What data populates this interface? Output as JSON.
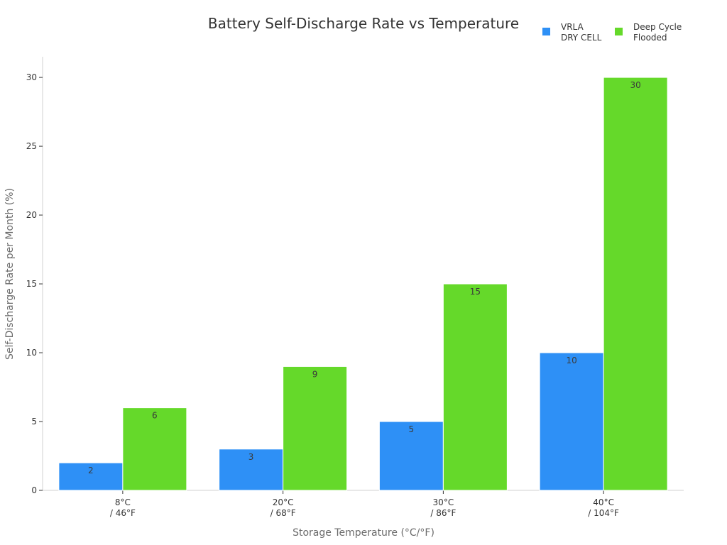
{
  "chart_data": {
    "type": "bar",
    "title": "Battery Self-Discharge Rate vs Temperature",
    "xlabel": "Storage Temperature (°C/°F)",
    "ylabel": "Self-Discharge Rate per Month (%)",
    "categories": [
      [
        "8°C",
        "/ 46°F"
      ],
      [
        "20°C",
        "/ 68°F"
      ],
      [
        "30°C",
        "/ 86°F"
      ],
      [
        "40°C",
        "/ 104°F"
      ]
    ],
    "ylim": [
      0,
      31.5
    ],
    "yticks": [
      0,
      5,
      10,
      15,
      20,
      25,
      30
    ],
    "grid": false,
    "legend_position": "top-right",
    "series": [
      {
        "name": [
          "VRLA",
          "DRY CELL"
        ],
        "color": "#2e90f6",
        "values": [
          2,
          3,
          5,
          10
        ]
      },
      {
        "name": [
          "Deep Cycle",
          "Flooded"
        ],
        "color": "#65d92a",
        "values": [
          6,
          9,
          15,
          30
        ]
      }
    ]
  }
}
